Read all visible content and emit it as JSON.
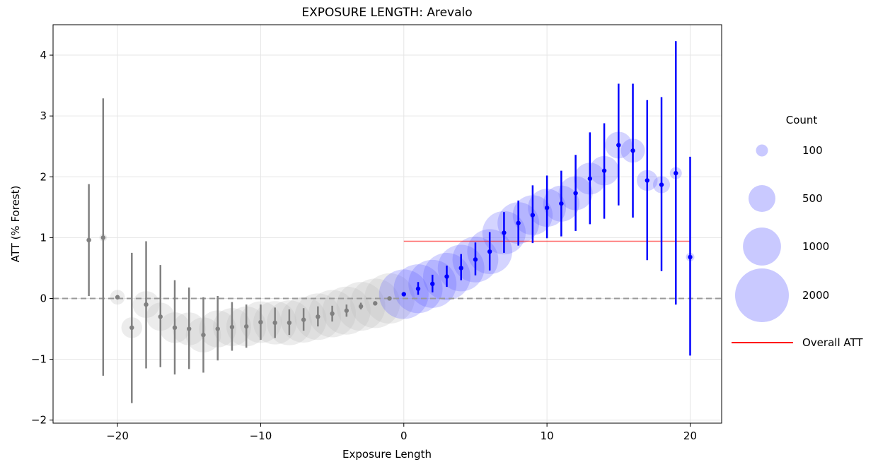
{
  "chart_data": {
    "type": "scatter",
    "title": "EXPOSURE LENGTH: Arevalo",
    "xlabel": "Exposure Length",
    "ylabel": "ATT (% Forest)",
    "xlim": [
      -24.5,
      22.2
    ],
    "ylim": [
      -2.05,
      4.5
    ],
    "xticks": [
      -20,
      -10,
      0,
      10,
      20
    ],
    "yticks": [
      -2,
      -1,
      0,
      1,
      2,
      3,
      4
    ],
    "grid": true,
    "zero_line": {
      "y": 0,
      "style": "dashed",
      "color": "#999999"
    },
    "overall_att": {
      "label": "Overall ATT",
      "value": 0.94,
      "x_range": [
        0,
        20
      ],
      "color": "#ff0000"
    },
    "colors": {
      "pre": "#808080",
      "post": "#0000ff",
      "bubble_pre": "#c0c0c0",
      "bubble_post": "#6464ff"
    },
    "series": [
      {
        "period": "pre",
        "x": [
          -22,
          -21,
          -20,
          -19,
          -18,
          -17,
          -16,
          -15,
          -14,
          -13,
          -12,
          -11,
          -10,
          -9,
          -8,
          -7,
          -6,
          -5,
          -4,
          -3,
          -2,
          -1
        ],
        "y": [
          0.96,
          1.0,
          0.02,
          -0.48,
          -0.1,
          -0.3,
          -0.48,
          -0.5,
          -0.6,
          -0.5,
          -0.47,
          -0.46,
          -0.39,
          -0.4,
          -0.4,
          -0.35,
          -0.3,
          -0.25,
          -0.2,
          -0.13,
          -0.08,
          0.0
        ],
        "ci_low": [
          0.04,
          -1.27,
          null,
          -1.72,
          -1.15,
          -1.13,
          -1.25,
          -1.16,
          -1.22,
          -1.02,
          -0.86,
          -0.81,
          -0.68,
          -0.65,
          -0.6,
          -0.53,
          -0.46,
          -0.38,
          -0.3,
          -0.18,
          null,
          null
        ],
        "ci_high": [
          1.88,
          3.29,
          1.51,
          0.75,
          0.94,
          0.55,
          0.3,
          0.18,
          0.02,
          0.04,
          -0.06,
          -0.1,
          -0.1,
          -0.15,
          -0.18,
          -0.16,
          -0.13,
          -0.12,
          -0.1,
          -0.07,
          null,
          null
        ],
        "count": [
          20,
          40,
          150,
          300,
          500,
          550,
          650,
          750,
          850,
          950,
          1000,
          1100,
          1200,
          1300,
          1400,
          1450,
          1500,
          1550,
          1600,
          1650,
          1700,
          1750
        ]
      },
      {
        "period": "post",
        "x": [
          0,
          1,
          2,
          3,
          4,
          5,
          6,
          7,
          8,
          9,
          10,
          11,
          12,
          13,
          14,
          15,
          16,
          17,
          18,
          19,
          20
        ],
        "y": [
          0.07,
          0.16,
          0.24,
          0.36,
          0.5,
          0.64,
          0.77,
          1.08,
          1.24,
          1.37,
          1.49,
          1.56,
          1.73,
          1.97,
          2.1,
          2.52,
          2.43,
          1.94,
          1.87,
          2.06,
          0.68
        ],
        "ci_low": [
          null,
          0.06,
          0.1,
          0.19,
          0.3,
          0.38,
          0.46,
          0.75,
          0.87,
          0.91,
          0.99,
          1.02,
          1.11,
          1.22,
          1.31,
          1.53,
          1.33,
          0.63,
          0.45,
          -0.1,
          -0.94
        ],
        "ci_high": [
          null,
          0.27,
          0.39,
          0.54,
          0.73,
          0.92,
          1.09,
          1.42,
          1.61,
          1.86,
          2.02,
          2.1,
          2.36,
          2.73,
          2.88,
          3.53,
          3.53,
          3.26,
          3.31,
          4.23,
          2.33
        ],
        "count": [
          1700,
          1650,
          1600,
          1550,
          1500,
          1450,
          1400,
          1300,
          1200,
          1100,
          1000,
          900,
          800,
          700,
          600,
          500,
          400,
          300,
          200,
          100,
          50
        ]
      }
    ],
    "legend": {
      "title": "Count",
      "sizes": [
        100,
        500,
        1000,
        2000
      ],
      "labels": [
        "100",
        "500",
        "1000",
        "2000"
      ],
      "placement": "right"
    }
  }
}
